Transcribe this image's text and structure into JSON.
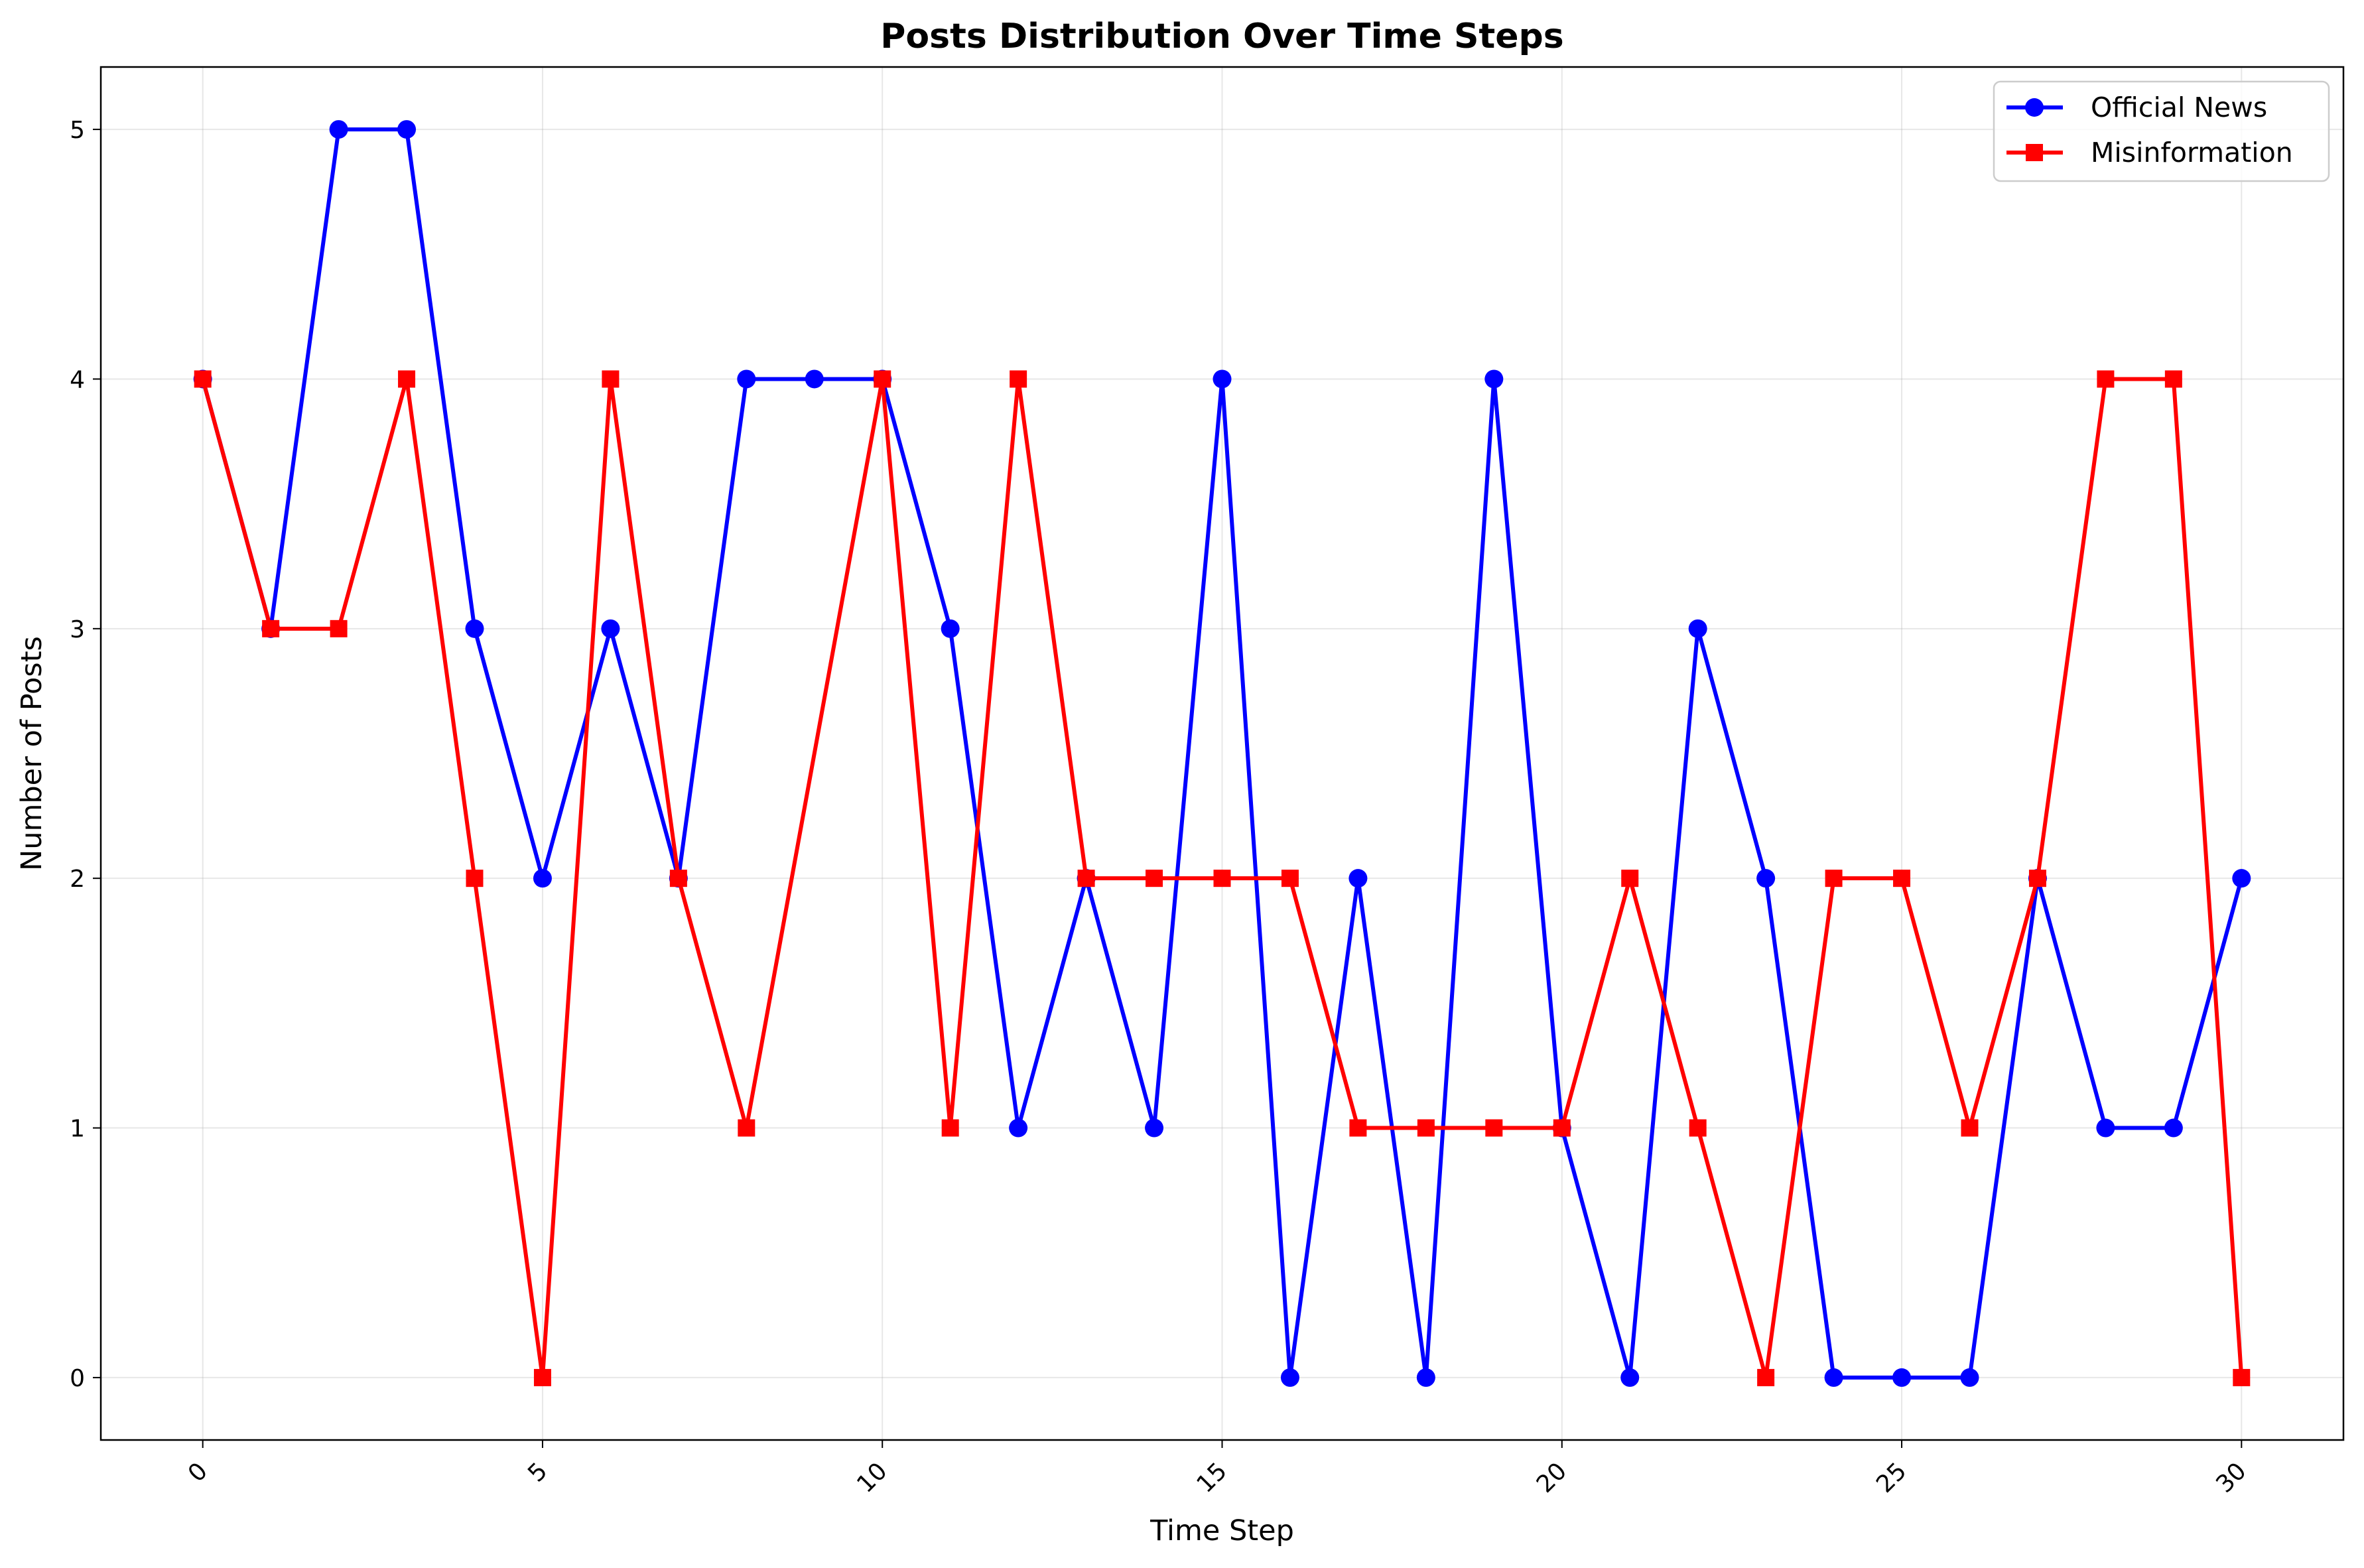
{
  "chart_data": {
    "type": "line",
    "title": "Posts Distribution Over Time Steps",
    "xlabel": "Time Step",
    "ylabel": "Number of Posts",
    "xlim": [
      -1.5,
      31.5
    ],
    "ylim": [
      -0.25,
      5.25
    ],
    "xticks": [
      0,
      5,
      10,
      15,
      20,
      25,
      30
    ],
    "yticks": [
      0,
      1,
      2,
      3,
      4,
      5
    ],
    "xtick_rotation": 45,
    "grid": true,
    "legend_position": "top-right",
    "x": [
      0,
      1,
      2,
      3,
      4,
      5,
      6,
      7,
      8,
      9,
      10,
      11,
      12,
      13,
      14,
      15,
      16,
      17,
      18,
      19,
      20,
      21,
      22,
      23,
      24,
      25,
      26,
      27,
      28,
      29,
      30
    ],
    "series": [
      {
        "name": "Official News",
        "color": "#0000ff",
        "marker": "circle",
        "values": [
          4,
          3,
          5,
          5,
          3,
          2,
          3,
          2,
          4,
          4,
          4,
          3,
          1,
          2,
          1,
          4,
          0,
          2,
          0,
          4,
          1,
          0,
          3,
          2,
          0,
          0,
          0,
          2,
          1,
          1,
          2
        ]
      },
      {
        "name": "Misinformation",
        "color": "#ff0000",
        "marker": "square",
        "values": [
          4,
          3,
          3,
          4,
          2,
          0,
          4,
          2,
          1,
          null,
          4,
          1,
          4,
          2,
          2,
          2,
          2,
          1,
          1,
          1,
          1,
          2,
          1,
          0,
          2,
          2,
          1,
          2,
          4,
          4,
          0
        ]
      }
    ]
  }
}
